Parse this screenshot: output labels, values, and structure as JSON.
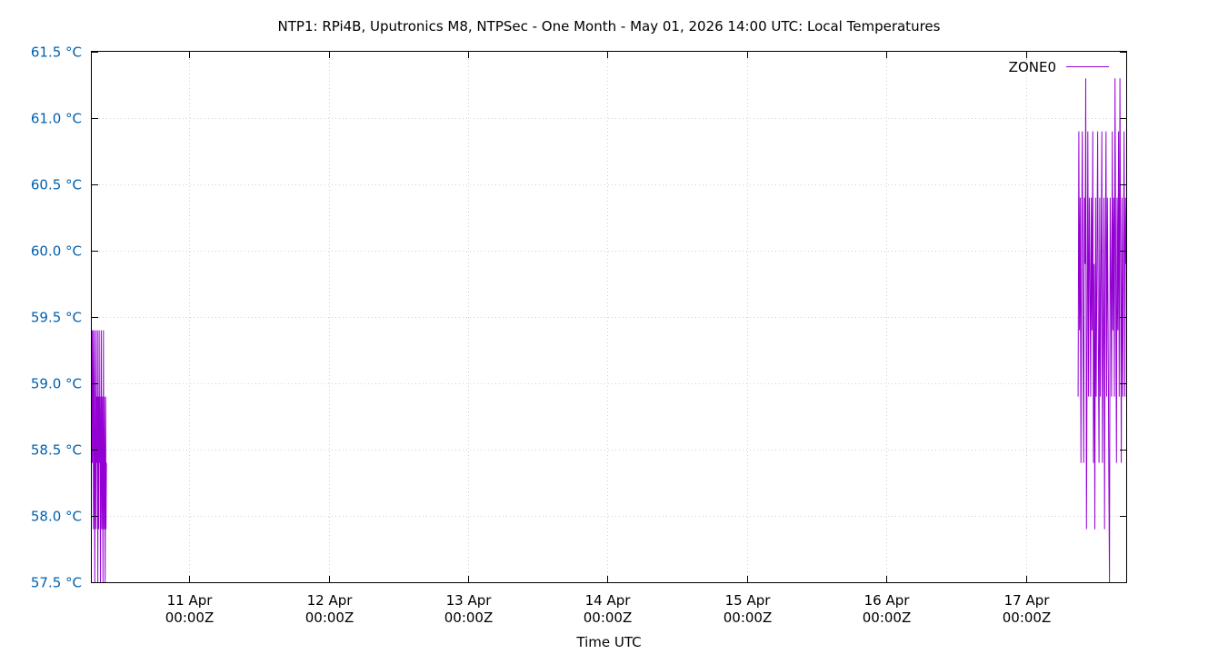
{
  "chart_data": {
    "type": "line",
    "title": "NTP1: RPi4B, Uputronics M8, NTPSec - One Month - May 01, 2026 14:00 UTC: Local Temperatures",
    "xlabel": "Time UTC",
    "ylabel": "",
    "x_unit": "days since 10 Apr 00:00Z",
    "xlim": [
      0.3,
      7.72
    ],
    "ylim": [
      57.5,
      61.5
    ],
    "yticks": [
      {
        "value": 57.5,
        "label": "57.5 °C"
      },
      {
        "value": 58.0,
        "label": "58.0 °C"
      },
      {
        "value": 58.5,
        "label": "58.5 °C"
      },
      {
        "value": 59.0,
        "label": "59.0 °C"
      },
      {
        "value": 59.5,
        "label": "59.5 °C"
      },
      {
        "value": 60.0,
        "label": "60.0 °C"
      },
      {
        "value": 60.5,
        "label": "60.5 °C"
      },
      {
        "value": 61.0,
        "label": "61.0 °C"
      },
      {
        "value": 61.5,
        "label": "61.5 °C"
      }
    ],
    "xticks": [
      {
        "value": 1,
        "line1": "11 Apr",
        "line2": "00:00Z"
      },
      {
        "value": 2,
        "line1": "12 Apr",
        "line2": "00:00Z"
      },
      {
        "value": 3,
        "line1": "13 Apr",
        "line2": "00:00Z"
      },
      {
        "value": 4,
        "line1": "14 Apr",
        "line2": "00:00Z"
      },
      {
        "value": 5,
        "line1": "15 Apr",
        "line2": "00:00Z"
      },
      {
        "value": 6,
        "line1": "16 Apr",
        "line2": "00:00Z"
      },
      {
        "value": 7,
        "line1": "17 Apr",
        "line2": "00:00Z"
      }
    ],
    "grid": true,
    "legend_position": "top-right",
    "series": [
      {
        "name": "ZONE0",
        "color": "#9400d3",
        "segments": [
          {
            "x_start": 0.3,
            "x_end": 0.405,
            "values": [
              59.4,
              58.4,
              59.4,
              58.9,
              57.9,
              59.4,
              58.4,
              57.5,
              58.9,
              59.4,
              57.9,
              58.9,
              58.4,
              59.4,
              57.5,
              58.9,
              57.9,
              59.4,
              58.4,
              58.9,
              57.5,
              58.4,
              59.4,
              57.9,
              58.9,
              58.4,
              57.5,
              59.4,
              57.9,
              58.9,
              58.4,
              57.5,
              58.9,
              57.9,
              58.4
            ]
          },
          {
            "x_start": 7.375,
            "x_end": 7.72,
            "values": [
              58.9,
              60.9,
              59.4,
              60.4,
              58.4,
              59.9,
              60.9,
              59.4,
              58.4,
              60.4,
              59.9,
              61.3,
              57.9,
              59.4,
              60.9,
              58.9,
              60.4,
              59.9,
              58.9,
              60.4,
              59.4,
              60.9,
              58.4,
              59.9,
              57.9,
              60.4,
              58.9,
              59.9,
              60.9,
              59.4,
              58.4,
              60.4,
              58.9,
              59.9,
              60.9,
              58.4,
              59.4,
              60.4,
              57.9,
              59.9,
              60.9,
              58.9,
              60.4,
              59.4,
              58.4,
              57.5,
              60.4,
              59.9,
              58.9,
              60.9,
              59.4,
              60.4,
              58.9,
              61.3,
              59.9,
              58.4,
              60.4,
              59.4,
              60.9,
              58.9,
              61.3,
              59.9,
              58.4,
              60.4,
              58.9,
              59.9,
              60.9,
              58.9,
              60.4,
              59.9
            ]
          }
        ]
      }
    ]
  }
}
